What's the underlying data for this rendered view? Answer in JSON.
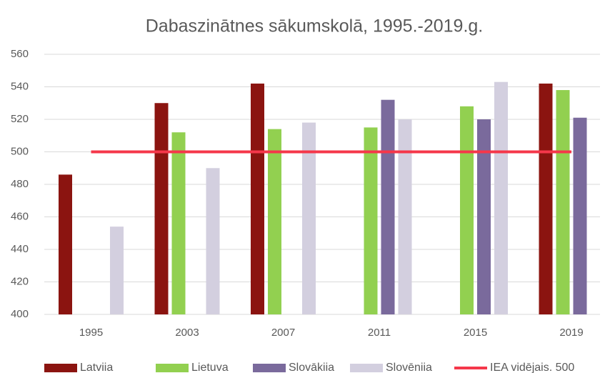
{
  "chart_data": {
    "type": "bar",
    "title": "Dabaszinātnes sākumskolā, 1995.-2019.g.",
    "categories": [
      "1995",
      "2003",
      "2007",
      "2011",
      "2015",
      "2019"
    ],
    "series": [
      {
        "name": "Latviia",
        "color": "#8b1410",
        "values": [
          486,
          530,
          542,
          null,
          null,
          542
        ]
      },
      {
        "name": "Lietuva",
        "color": "#92d050",
        "values": [
          null,
          512,
          514,
          515,
          528,
          538
        ]
      },
      {
        "name": "Slovākiia",
        "color": "#7a6a9c",
        "values": [
          null,
          null,
          null,
          532,
          520,
          521
        ]
      },
      {
        "name": "Slovēniia",
        "color": "#d3cfdf",
        "values": [
          454,
          490,
          518,
          520,
          543,
          null
        ]
      },
      {
        "name": "IEA vidējais. 500",
        "color": "#f5374a",
        "type": "line",
        "values": [
          500,
          500,
          500,
          500,
          500,
          500
        ]
      }
    ],
    "ylim": [
      400,
      560
    ],
    "yticks": [
      400,
      420,
      440,
      460,
      480,
      500,
      520,
      540,
      560
    ],
    "grid": true
  }
}
